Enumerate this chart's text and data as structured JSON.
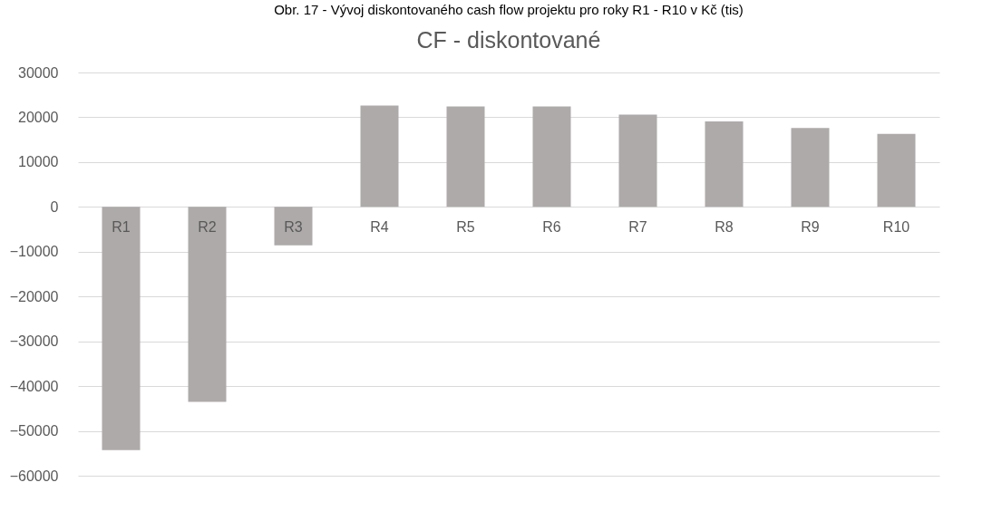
{
  "chart_data": {
    "type": "bar",
    "title": "CF - diskontované",
    "annotations": [
      "Obr. 17 - Vývoj diskontovaného cash flow projektu pro roky R1 - R10 v Kč (tis)"
    ],
    "categories": [
      "R1",
      "R2",
      "R3",
      "R4",
      "R5",
      "R6",
      "R7",
      "R8",
      "R9",
      "R10"
    ],
    "values": [
      -54300,
      -43500,
      -8600,
      22600,
      22400,
      22400,
      20600,
      19100,
      17600,
      16300
    ],
    "color": "#aeaaaa",
    "ylim": [
      -60000,
      30000
    ],
    "yticks": [
      -60000,
      -50000,
      -40000,
      -30000,
      -20000,
      -10000,
      0,
      10000,
      20000,
      30000
    ],
    "grid": "y"
  }
}
